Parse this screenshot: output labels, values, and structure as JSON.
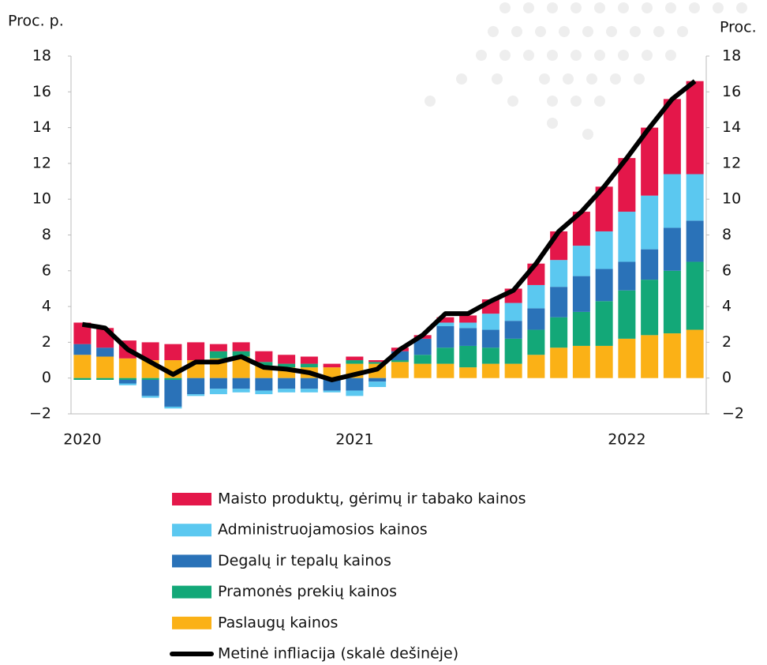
{
  "chart_data": {
    "type": "bar",
    "y_label": "Proc. p.",
    "y2_label": "Proc.",
    "categories": [
      "2020",
      null,
      null,
      null,
      null,
      null,
      null,
      null,
      null,
      null,
      null,
      null,
      "2021",
      null,
      null,
      null,
      null,
      null,
      null,
      null,
      null,
      null,
      null,
      null,
      "2022",
      null,
      null,
      null
    ],
    "series": [
      {
        "name": "Maisto produktų, gėrimų ir tabako kainos",
        "color": "#e4174a",
        "values": [
          1.2,
          1.1,
          1.0,
          1.0,
          0.9,
          1.0,
          0.4,
          0.5,
          0.6,
          0.5,
          0.4,
          0.2,
          0.2,
          0.1,
          0.2,
          0.2,
          0.3,
          0.4,
          0.8,
          0.8,
          1.2,
          1.6,
          1.9,
          2.5,
          3.0,
          3.8,
          4.2,
          5.2
        ]
      },
      {
        "name": "Administruojamosios kainos",
        "color": "#5bc8f0",
        "values": [
          0.0,
          0.0,
          -0.1,
          -0.1,
          -0.1,
          -0.1,
          -0.3,
          -0.2,
          -0.2,
          -0.2,
          -0.2,
          -0.1,
          -0.3,
          -0.3,
          0.0,
          0.0,
          0.2,
          0.3,
          0.9,
          1.0,
          1.3,
          1.5,
          1.7,
          2.1,
          2.8,
          3.0,
          3.0,
          2.6
        ]
      },
      {
        "name": "Degalų ir tepalų kainos",
        "color": "#2a72b8",
        "values": [
          0.6,
          0.5,
          -0.2,
          -0.9,
          -1.5,
          -0.9,
          -0.6,
          -0.6,
          -0.7,
          -0.6,
          -0.6,
          -0.7,
          -0.7,
          -0.2,
          0.5,
          0.9,
          1.2,
          1.0,
          1.0,
          1.0,
          1.2,
          1.7,
          2.0,
          1.8,
          1.6,
          1.7,
          2.4,
          2.3
        ]
      },
      {
        "name": "Pramonės prekių kainos",
        "color": "#13a878",
        "values": [
          -0.1,
          -0.1,
          -0.1,
          -0.1,
          -0.1,
          0.0,
          0.4,
          0.3,
          0.2,
          0.2,
          0.2,
          0.0,
          0.2,
          0.1,
          0.1,
          0.5,
          0.9,
          1.2,
          0.9,
          1.4,
          1.4,
          1.7,
          1.9,
          2.5,
          2.7,
          3.1,
          3.5,
          3.8
        ]
      },
      {
        "name": "Paslaugų kainos",
        "color": "#fbb116",
        "values": [
          1.3,
          1.2,
          1.1,
          1.0,
          1.0,
          1.0,
          1.1,
          1.2,
          0.7,
          0.6,
          0.6,
          0.6,
          0.8,
          0.8,
          0.9,
          0.8,
          0.8,
          0.6,
          0.8,
          0.8,
          1.3,
          1.7,
          1.8,
          1.8,
          2.2,
          2.4,
          2.5,
          2.7
        ]
      },
      {
        "name": "Metinė infliacija (skalė dešinėje)",
        "color": "#000000",
        "type": "line",
        "axis": "y2",
        "values": [
          3.0,
          2.8,
          1.6,
          0.9,
          0.2,
          0.9,
          0.9,
          1.2,
          0.6,
          0.5,
          0.3,
          -0.1,
          0.2,
          0.5,
          1.6,
          2.4,
          3.6,
          3.6,
          4.3,
          4.9,
          6.4,
          8.2,
          9.3,
          10.7,
          12.3,
          14.0,
          15.6,
          16.6
        ]
      }
    ],
    "ylim": [
      -2,
      18
    ],
    "yticks": [
      {
        "value": -2,
        "label": "−2"
      },
      0,
      2,
      4,
      6,
      8,
      10,
      12,
      14,
      16,
      18
    ],
    "y2lim": [
      -2,
      18
    ],
    "y2ticks": [
      {
        "value": -2,
        "label": "−2"
      },
      0,
      2,
      4,
      6,
      8,
      10,
      12,
      14,
      16,
      18
    ],
    "legend": "bottom"
  }
}
